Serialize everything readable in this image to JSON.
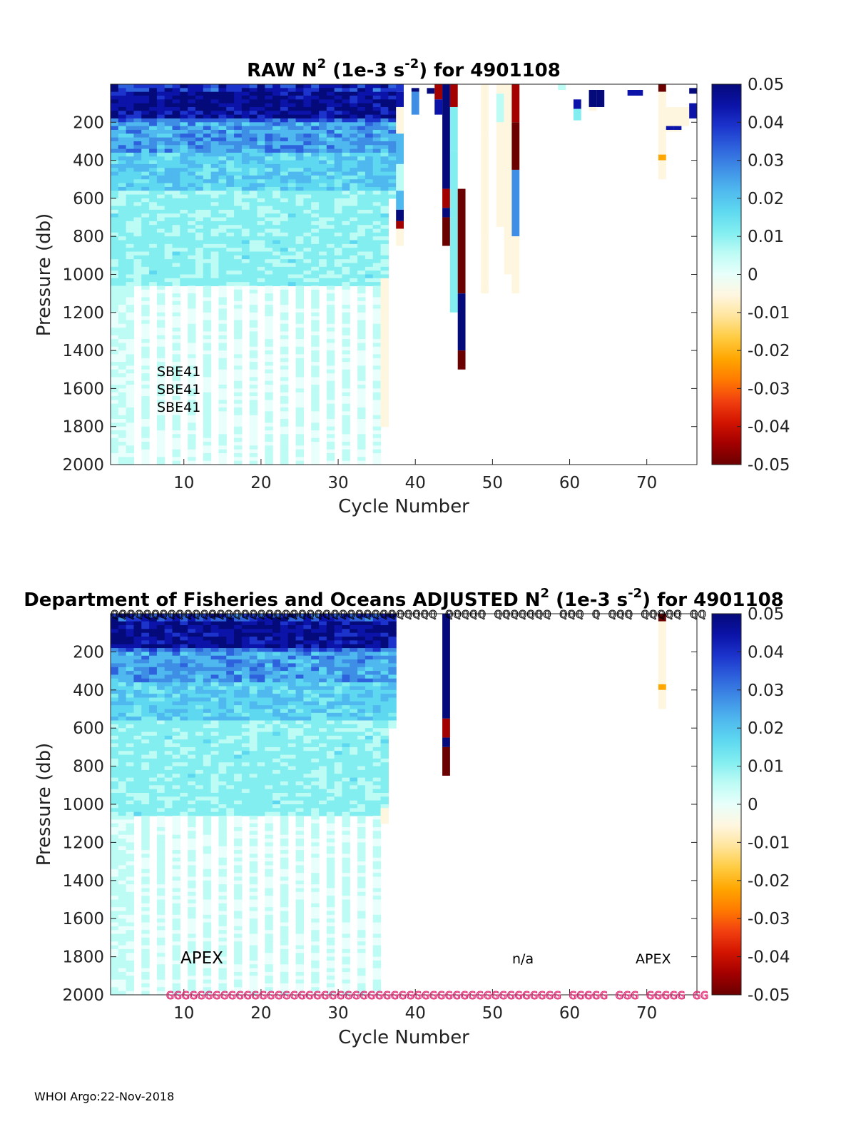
{
  "colors": {
    "colormap": [
      "#6b0000",
      "#a30000",
      "#d21400",
      "#f24010",
      "#ff7a00",
      "#ffa600",
      "#ffcb40",
      "#ffe49a",
      "#fff6df",
      "#e8fffb",
      "#bdfbf5",
      "#82eef0",
      "#5ed8f0",
      "#4fb8ee",
      "#3f8ee6",
      "#2e62dc",
      "#1c34cc",
      "#0b13a8",
      "#050a7a"
    ],
    "q_marker": "#000000",
    "g_marker": "#e0206e"
  },
  "chart_data": [
    {
      "type": "heatmap",
      "title": "RAW N² (1e-3 s⁻²) for 4901108",
      "title_parts": {
        "pre": "RAW N",
        "sup1": "2",
        "mid": " (1e-3 s",
        "sup2": "-2",
        "post": ") for 4901108"
      },
      "xlabel": "Cycle Number",
      "ylabel": "Pressure (db)",
      "xlim": [
        1,
        77
      ],
      "ylim": [
        0,
        2000
      ],
      "x_ticks": [
        10,
        20,
        30,
        40,
        50,
        60,
        70
      ],
      "y_ticks": [
        200,
        400,
        600,
        800,
        1000,
        1200,
        1400,
        1600,
        1800,
        2000
      ],
      "colorbar": {
        "range": [
          -0.05,
          0.05
        ],
        "ticks": [
          "0.05",
          "0.04",
          "0.03",
          "0.02",
          "0.01",
          "0",
          "-0.01",
          "-0.02",
          "-0.03",
          "-0.04",
          "-0.05"
        ]
      },
      "annotations": [
        "SBE41",
        "SBE41",
        "SBE41"
      ],
      "sparse_columns": [
        {
          "cycle": 38,
          "segments": [
            [
              0,
              40,
              0.04
            ],
            [
              40,
              120,
              0.045
            ],
            [
              120,
              260,
              -0.006
            ],
            [
              260,
              420,
              0.02
            ],
            [
              420,
              560,
              0.006
            ],
            [
              560,
              660,
              0.02
            ],
            [
              660,
              720,
              0.05
            ],
            [
              720,
              760,
              -0.045
            ],
            [
              760,
              850,
              -0.004
            ]
          ]
        },
        {
          "cycle": 40,
          "segments": [
            [
              20,
              40,
              0.05
            ],
            [
              40,
              160,
              0.03
            ]
          ]
        },
        {
          "cycle": 42,
          "segments": [
            [
              20,
              50,
              0.05
            ]
          ]
        },
        {
          "cycle": 43,
          "segments": [
            [
              0,
              80,
              -0.045
            ],
            [
              80,
              160,
              0.045
            ]
          ]
        },
        {
          "cycle": 44,
          "segments": [
            [
              0,
              550,
              0.05
            ],
            [
              550,
              650,
              -0.045
            ],
            [
              650,
              700,
              0.05
            ],
            [
              700,
              850,
              -0.05
            ]
          ]
        },
        {
          "cycle": 45,
          "segments": [
            [
              0,
              120,
              -0.045
            ],
            [
              120,
              350,
              0.012
            ],
            [
              350,
              700,
              0.01
            ],
            [
              700,
              1200,
              0.01
            ]
          ]
        },
        {
          "cycle": 46,
          "segments": [
            [
              550,
              1100,
              -0.05
            ],
            [
              1100,
              1400,
              0.05
            ],
            [
              1400,
              1500,
              -0.05
            ]
          ]
        },
        {
          "cycle": 49,
          "segments": [
            [
              0,
              250,
              -0.004
            ],
            [
              250,
              800,
              -0.005
            ],
            [
              800,
              1050,
              -0.006
            ],
            [
              1050,
              1100,
              -0.003
            ]
          ]
        },
        {
          "cycle": 51,
          "segments": [
            [
              0,
              50,
              -0.006
            ],
            [
              50,
              200,
              0.006
            ],
            [
              200,
              750,
              -0.004
            ]
          ]
        },
        {
          "cycle": 52,
          "segments": [
            [
              0,
              100,
              -0.005
            ],
            [
              100,
              400,
              -0.004
            ],
            [
              400,
              1000,
              -0.005
            ]
          ]
        },
        {
          "cycle": 53,
          "segments": [
            [
              0,
              200,
              -0.045
            ],
            [
              200,
              450,
              -0.05
            ],
            [
              450,
              800,
              0.025
            ],
            [
              800,
              1100,
              -0.004
            ]
          ]
        },
        {
          "cycle": 59,
          "segments": [
            [
              0,
              30,
              0.008
            ]
          ]
        },
        {
          "cycle": 61,
          "segments": [
            [
              80,
              130,
              0.045
            ],
            [
              130,
              190,
              0.01
            ]
          ]
        },
        {
          "cycle": 63,
          "segments": [
            [
              30,
              120,
              0.05
            ],
            [
              120,
              140,
              -0.005
            ]
          ]
        },
        {
          "cycle": 64,
          "segments": [
            [
              30,
              120,
              0.05
            ]
          ]
        },
        {
          "cycle": 68,
          "segments": [
            [
              30,
              60,
              0.045
            ]
          ]
        },
        {
          "cycle": 69,
          "segments": [
            [
              30,
              60,
              0.045
            ]
          ]
        },
        {
          "cycle": 72,
          "segments": [
            [
              0,
              40,
              -0.05
            ],
            [
              40,
              370,
              -0.004
            ],
            [
              370,
              400,
              -0.025
            ],
            [
              400,
              500,
              -0.004
            ]
          ]
        },
        {
          "cycle": 73,
          "segments": [
            [
              120,
              250,
              -0.004
            ],
            [
              220,
              240,
              0.045
            ]
          ]
        },
        {
          "cycle": 74,
          "segments": [
            [
              120,
              250,
              -0.004
            ],
            [
              220,
              240,
              0.045
            ]
          ]
        },
        {
          "cycle": 75,
          "segments": [
            [
              120,
              220,
              -0.004
            ]
          ]
        },
        {
          "cycle": 76,
          "segments": [
            [
              20,
              50,
              0.05
            ],
            [
              100,
              180,
              0.045
            ]
          ]
        }
      ]
    },
    {
      "type": "heatmap",
      "title": "Department of Fisheries and Oceans  ADJUSTED N² (1e-3 s⁻²) for 4901108",
      "title_parts": {
        "pre": "Department of Fisheries and Oceans  ADJUSTED N",
        "sup1": "2",
        "mid": " (1e-3 s",
        "sup2": "-2",
        "post": ") for 4901108"
      },
      "xlabel": "Cycle Number",
      "ylabel": "Pressure (db)",
      "xlim": [
        1,
        77
      ],
      "ylim": [
        0,
        2000
      ],
      "x_ticks": [
        10,
        20,
        30,
        40,
        50,
        60,
        70
      ],
      "y_ticks": [
        200,
        400,
        600,
        800,
        1000,
        1200,
        1400,
        1600,
        1800,
        2000
      ],
      "colorbar": {
        "range": [
          -0.05,
          0.05
        ],
        "ticks": [
          "0.05",
          "0.04",
          "0.03",
          "0.02",
          "0.01",
          "0",
          "-0.01",
          "-0.02",
          "-0.03",
          "-0.04",
          "-0.05"
        ]
      },
      "annotations": [
        "APEX",
        "n/a",
        "APEX"
      ],
      "sparse_columns": [
        {
          "cycle": 44,
          "segments": [
            [
              0,
              550,
              0.05
            ],
            [
              550,
              650,
              -0.045
            ],
            [
              650,
              700,
              0.05
            ],
            [
              700,
              850,
              -0.05
            ]
          ]
        },
        {
          "cycle": 72,
          "segments": [
            [
              0,
              40,
              -0.05
            ],
            [
              40,
              370,
              -0.004
            ],
            [
              370,
              400,
              -0.025
            ],
            [
              400,
              500,
              -0.004
            ]
          ]
        }
      ],
      "q_marker_text": "QQQQQQQQQQQQQQQQQQQQQQQQQQQQQQQQQQQQQQQQ QQQQQ QQQQQQQ QQQ Q QQQ QQQQQ QQ",
      "g_marker_text": "GGGGGGGGGGGGGGGGGGGGGGGGGGGGGGGGGGGGGGGGGGGGGGGGGGG GGGGG GGG GGGGG GG"
    }
  ],
  "footer": "WHOI Argo:22-Nov-2018"
}
